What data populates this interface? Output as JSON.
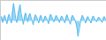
{
  "chart_data": {
    "type": "area",
    "values": [
      0.4,
      0.8,
      -0.2,
      0.6,
      1.0,
      0.3,
      -0.4,
      0.7,
      1.2,
      0.5,
      -0.3,
      1.5,
      3.0,
      1.8,
      0.4,
      -0.2,
      1.0,
      2.0,
      2.8,
      1.2,
      0.5,
      -0.5,
      0.8,
      1.4,
      0.6,
      -0.1,
      0.9,
      1.3,
      0.7,
      0.2,
      -0.6,
      0.5,
      1.1,
      0.8,
      0.3,
      -0.3,
      0.6,
      1.0,
      0.5,
      -0.2,
      0.4,
      0.9,
      0.6,
      0.2,
      -0.4,
      0.7,
      1.2,
      0.8,
      0.3,
      -0.1,
      0.5,
      1.0,
      0.7,
      0.3,
      -0.2,
      0.5,
      0.9,
      0.6,
      0.2,
      -0.3,
      0.7,
      1.1,
      0.5,
      0.1,
      -0.5,
      0.6,
      1.0,
      0.7,
      0.3,
      -0.2,
      -1.0,
      -2.5,
      -1.5,
      -0.4,
      0.5,
      1.0,
      0.6,
      0.2,
      -0.3,
      0.5,
      0.8,
      0.4,
      0.1,
      -0.3,
      0.6,
      0.9,
      0.5,
      0.2,
      -0.1,
      0.4,
      0.7,
      0.5,
      0.2,
      -0.2,
      0.5,
      0.8,
      0.4,
      0.1
    ],
    "color": "#55bbee",
    "xlim": [
      0,
      97
    ],
    "ylim": [
      -3.2,
      3.5
    ],
    "tick_labels": false,
    "grid": false
  }
}
